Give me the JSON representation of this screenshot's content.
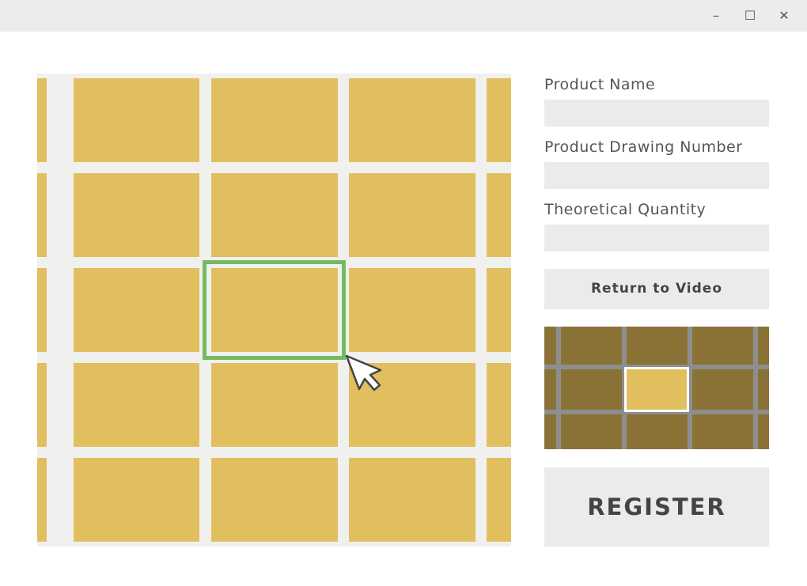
{
  "window": {
    "controls": {
      "minimize": "–",
      "maximize": "☐",
      "close": "✕"
    }
  },
  "form": {
    "product_name_label": "Product Name",
    "product_name_value": "",
    "drawing_number_label": "Product Drawing Number",
    "drawing_number_value": "",
    "quantity_label": "Theoretical Quantity",
    "quantity_value": "",
    "return_button": "Return to Video",
    "register_button": "REGISTER"
  },
  "grid": {
    "rows": 5,
    "cols": 5,
    "selected": {
      "row": 3,
      "col": 3
    }
  },
  "minimap": {
    "rows": 3,
    "cols": 4,
    "selected": {
      "row": 2,
      "col": 2
    }
  },
  "colors": {
    "tile": "#e2bf5e",
    "tile_dim": "#8a7237",
    "selection": "#74bb60",
    "grout": "#f0f0ee"
  }
}
